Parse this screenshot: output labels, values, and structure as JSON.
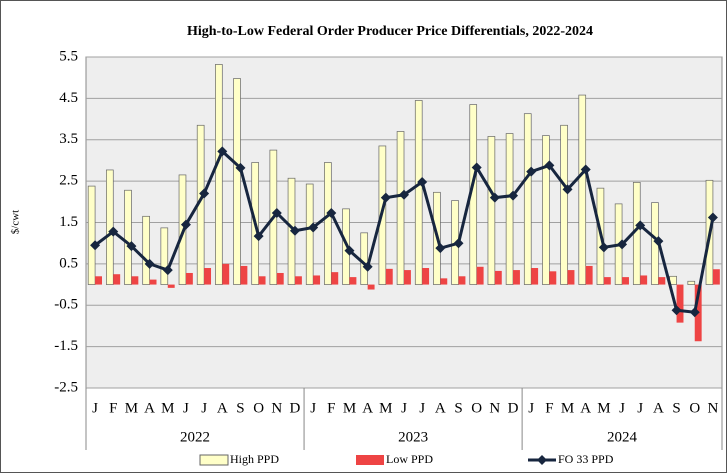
{
  "chart_data": {
    "type": "bar-line",
    "title": "High-to-Low Federal Order Producer Price Differentials, 2022-2024",
    "y_label": "$/cwt",
    "categories": [
      "J",
      "F",
      "M",
      "A",
      "M",
      "J",
      "J",
      "A",
      "S",
      "O",
      "N",
      "D",
      "J",
      "F",
      "M",
      "A",
      "M",
      "J",
      "J",
      "A",
      "S",
      "O",
      "N",
      "D",
      "J",
      "F",
      "M",
      "A",
      "M",
      "J",
      "J",
      "A",
      "S",
      "O",
      "N"
    ],
    "groups": [
      "2022",
      "2023",
      "2024"
    ],
    "ylim": [
      -2.5,
      5.5
    ],
    "yticks": [
      -2.5,
      -1.5,
      -0.5,
      0.5,
      1.5,
      2.5,
      3.5,
      4.5,
      5.5
    ],
    "grid": true,
    "legend": "bottom",
    "series": [
      {
        "name": "High PPD",
        "type": "bar",
        "color": "#ffffc8",
        "values": [
          2.38,
          2.77,
          2.28,
          1.65,
          1.37,
          2.65,
          3.85,
          5.32,
          4.98,
          2.95,
          3.25,
          2.57,
          2.43,
          2.95,
          1.83,
          1.25,
          3.35,
          3.7,
          4.45,
          2.23,
          2.03,
          4.35,
          3.58,
          3.65,
          4.13,
          3.6,
          3.85,
          4.58,
          2.33,
          1.95,
          2.47,
          1.98,
          0.2,
          0.08,
          2.52
        ]
      },
      {
        "name": "Low PPD",
        "type": "bar",
        "color": "#ee4444",
        "values": [
          0.2,
          0.25,
          0.2,
          0.12,
          -0.08,
          0.28,
          0.4,
          0.5,
          0.45,
          0.2,
          0.28,
          0.2,
          0.22,
          0.3,
          0.18,
          -0.12,
          0.38,
          0.35,
          0.4,
          0.15,
          0.2,
          0.43,
          0.33,
          0.35,
          0.4,
          0.32,
          0.35,
          0.45,
          0.18,
          0.18,
          0.22,
          0.18,
          -0.92,
          -1.37,
          0.37
        ]
      },
      {
        "name": "FO 33 PPD",
        "type": "line",
        "color": "#17263f",
        "values": [
          0.95,
          1.28,
          0.93,
          0.5,
          0.35,
          1.45,
          2.2,
          3.22,
          2.82,
          1.17,
          1.73,
          1.3,
          1.38,
          1.73,
          0.82,
          0.43,
          2.1,
          2.17,
          2.48,
          0.88,
          1.0,
          2.83,
          2.1,
          2.15,
          2.73,
          2.88,
          2.3,
          2.78,
          0.9,
          0.97,
          1.43,
          1.05,
          -0.62,
          -0.67,
          1.62
        ]
      }
    ]
  }
}
